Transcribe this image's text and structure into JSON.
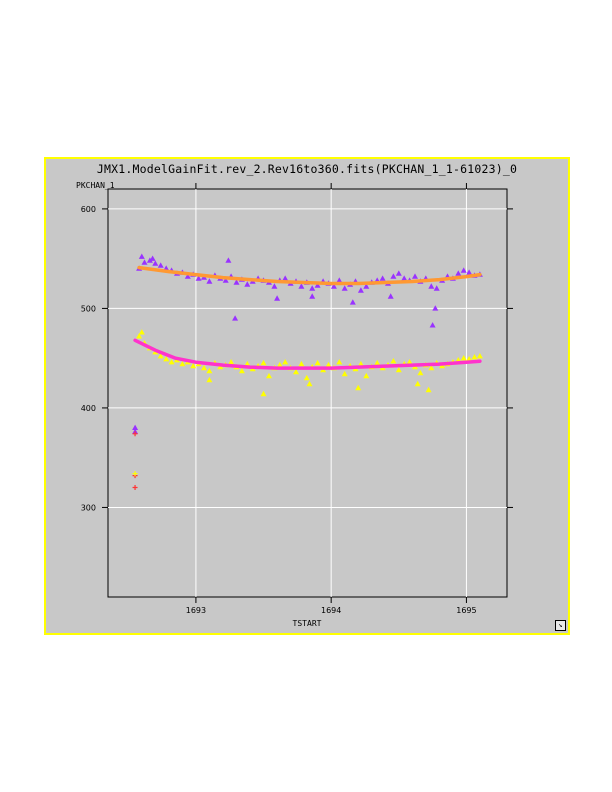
{
  "window": {
    "title": "JMX1.ModelGainFit.rev_2.Rev16to360.fits(PKCHAN_1_1-61023)_0",
    "resize_icon": "resize-corner-icon"
  },
  "chart_data": {
    "type": "scatter",
    "xlabel": "TSTART",
    "ylabel": "PKCHAN_1",
    "xlim": [
      1692.35,
      1695.3
    ],
    "ylim": [
      210,
      620
    ],
    "xticks": [
      1693,
      1694,
      1695
    ],
    "xtick_labels": [
      "1693",
      "1694",
      "1695"
    ],
    "yticks": [
      300,
      400,
      500,
      600
    ],
    "ytick_labels": [
      "300",
      "400",
      "500",
      "600"
    ],
    "grid": true,
    "colors": {
      "upper_points": "#9933ff",
      "upper_fit": "#ff9933",
      "lower_points": "#ffff00",
      "lower_fit": "#ff33cc",
      "outlier_marker": "#ff3333"
    },
    "series": [
      {
        "color": "#9933ff",
        "marker": "triangle",
        "x": [
          1692.58,
          1692.62,
          1692.66,
          1692.7,
          1692.74,
          1692.78,
          1692.82,
          1692.86,
          1692.9,
          1692.94,
          1692.98,
          1693.02,
          1693.06,
          1693.1,
          1693.14,
          1693.18,
          1693.22,
          1693.26,
          1693.3,
          1693.34,
          1693.38,
          1693.42,
          1693.46,
          1693.5,
          1693.54,
          1693.58,
          1693.62,
          1693.66,
          1693.7,
          1693.74,
          1693.78,
          1693.82,
          1693.86,
          1693.9,
          1693.94,
          1693.98,
          1694.02,
          1694.06,
          1694.1,
          1694.14,
          1694.18,
          1694.22,
          1694.26,
          1694.3,
          1694.34,
          1694.38,
          1694.42,
          1694.46,
          1694.5,
          1694.54,
          1694.58,
          1694.62,
          1694.66,
          1694.7,
          1694.74,
          1694.78,
          1694.82,
          1694.86,
          1694.9,
          1694.94,
          1694.98,
          1695.02,
          1695.06,
          1695.1,
          1692.6,
          1692.68,
          1693.24,
          1693.29,
          1693.6,
          1693.86,
          1694.16,
          1694.44,
          1694.75,
          1694.77
        ],
        "y": [
          540,
          546,
          548,
          545,
          543,
          540,
          538,
          535,
          536,
          532,
          534,
          530,
          531,
          527,
          533,
          530,
          528,
          532,
          526,
          529,
          524,
          527,
          530,
          528,
          526,
          522,
          528,
          530,
          525,
          527,
          522,
          526,
          520,
          523,
          527,
          525,
          522,
          528,
          520,
          524,
          527,
          518,
          522,
          526,
          528,
          530,
          525,
          532,
          535,
          530,
          528,
          532,
          527,
          530,
          522,
          520,
          528,
          532,
          530,
          535,
          538,
          536,
          533,
          534,
          552,
          550,
          548,
          490,
          510,
          512,
          506,
          512,
          483,
          500
        ]
      },
      {
        "color": "#ff9933",
        "marker": "line",
        "x": [
          1692.58,
          1692.8,
          1693.0,
          1693.2,
          1693.4,
          1693.6,
          1693.8,
          1694.0,
          1694.2,
          1694.4,
          1694.6,
          1694.8,
          1695.0,
          1695.1
        ],
        "y": [
          541,
          537,
          534,
          531,
          529,
          527,
          526,
          525,
          525,
          526,
          527,
          529,
          532,
          534
        ]
      },
      {
        "color": "#ffff00",
        "marker": "triangle",
        "x": [
          1692.58,
          1692.62,
          1692.66,
          1692.7,
          1692.74,
          1692.78,
          1692.82,
          1692.86,
          1692.9,
          1692.94,
          1692.98,
          1693.02,
          1693.06,
          1693.1,
          1693.14,
          1693.18,
          1693.22,
          1693.26,
          1693.3,
          1693.34,
          1693.38,
          1693.42,
          1693.46,
          1693.5,
          1693.54,
          1693.58,
          1693.62,
          1693.66,
          1693.7,
          1693.74,
          1693.78,
          1693.82,
          1693.86,
          1693.9,
          1693.94,
          1693.98,
          1694.02,
          1694.06,
          1694.1,
          1694.14,
          1694.18,
          1694.22,
          1694.26,
          1694.3,
          1694.34,
          1694.38,
          1694.42,
          1694.46,
          1694.5,
          1694.54,
          1694.58,
          1694.62,
          1694.66,
          1694.7,
          1694.74,
          1694.78,
          1694.82,
          1694.86,
          1694.9,
          1694.94,
          1694.98,
          1695.02,
          1695.06,
          1695.1,
          1692.6,
          1693.1,
          1693.5,
          1693.84,
          1694.2,
          1694.64,
          1694.72
        ],
        "y": [
          472,
          465,
          460,
          456,
          452,
          449,
          446,
          448,
          444,
          446,
          442,
          444,
          440,
          437,
          445,
          441,
          443,
          446,
          441,
          437,
          444,
          439,
          442,
          445,
          432,
          440,
          443,
          446,
          440,
          436,
          444,
          430,
          441,
          445,
          438,
          443,
          440,
          446,
          434,
          442,
          439,
          444,
          432,
          441,
          445,
          440,
          443,
          447,
          438,
          444,
          446,
          441,
          435,
          443,
          440,
          445,
          442,
          444,
          446,
          448,
          450,
          449,
          451,
          452,
          476,
          428,
          414,
          424,
          420,
          424,
          418
        ]
      },
      {
        "color": "#ff33cc",
        "marker": "line",
        "x": [
          1692.55,
          1692.7,
          1692.85,
          1693.0,
          1693.2,
          1693.4,
          1693.6,
          1693.8,
          1694.0,
          1694.2,
          1694.4,
          1694.6,
          1694.8,
          1695.0,
          1695.1
        ],
        "y": [
          468,
          458,
          450,
          446,
          443,
          441,
          440,
          440,
          440,
          441,
          442,
          443,
          444,
          446,
          447
        ]
      },
      {
        "color": "#9933ff",
        "marker": "triangle",
        "x": [
          1692.55,
          1692.55
        ],
        "y": [
          380,
          376
        ]
      },
      {
        "color": "#ff3333",
        "marker": "plus",
        "x": [
          1692.55,
          1692.55,
          1692.55
        ],
        "y": [
          374,
          332,
          320
        ]
      },
      {
        "color": "#ffff00",
        "marker": "plus",
        "x": [
          1692.55
        ],
        "y": [
          334
        ]
      }
    ]
  }
}
